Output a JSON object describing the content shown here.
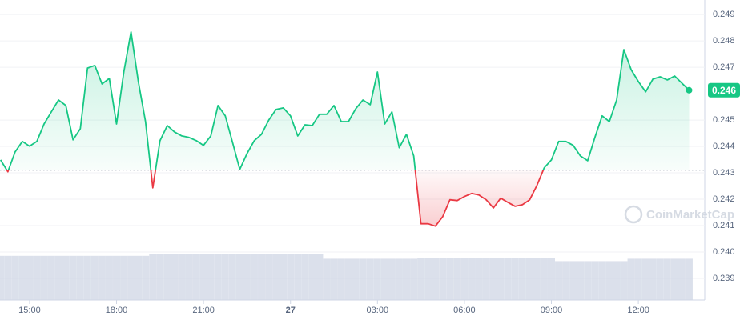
{
  "chart_data": {
    "type": "line",
    "watermark": "CoinMarketCap",
    "current_price_label": "0.246",
    "line_color_up": "#16c784",
    "line_color_down": "#ea3943",
    "volume_color": "#cfd6e4",
    "baseline": 0.2431,
    "x": [
      14,
      14.25,
      14.5,
      14.75,
      15,
      15.25,
      15.5,
      15.75,
      16,
      16.25,
      16.5,
      16.75,
      17,
      17.25,
      17.5,
      17.75,
      18,
      18.25,
      18.5,
      18.75,
      19,
      19.25,
      19.5,
      19.75,
      20,
      20.25,
      20.5,
      20.75,
      21,
      21.25,
      21.5,
      21.75,
      22,
      22.25,
      22.5,
      22.75,
      23,
      23.25,
      23.5,
      23.75,
      24,
      24.25,
      24.5,
      24.75,
      25,
      25.25,
      25.5,
      25.75,
      26,
      26.25,
      26.5,
      26.75,
      27,
      27.25,
      27.5,
      27.75,
      28,
      28.25,
      28.5,
      28.75,
      29,
      29.25,
      29.5,
      29.75,
      30,
      30.25,
      30.5,
      30.75,
      31,
      31.25,
      31.5,
      31.75,
      32,
      32.25,
      32.5,
      32.75,
      33,
      33.25,
      33.5,
      33.75,
      34,
      34.25,
      34.5,
      34.75,
      35,
      35.25,
      35.5,
      35.75,
      36,
      36.25,
      36.5,
      36.75,
      37,
      37.25,
      37.5,
      37.75
    ],
    "values": [
      0.24349,
      0.24304,
      0.24379,
      0.24419,
      0.24401,
      0.24419,
      0.24485,
      0.24531,
      0.24576,
      0.24555,
      0.24425,
      0.24467,
      0.24697,
      0.24707,
      0.24637,
      0.24658,
      0.24485,
      0.24682,
      0.24834,
      0.24646,
      0.24494,
      0.24243,
      0.24422,
      0.24479,
      0.24455,
      0.2444,
      0.24434,
      0.24422,
      0.24404,
      0.2444,
      0.24555,
      0.24516,
      0.24416,
      0.24313,
      0.24373,
      0.24422,
      0.24446,
      0.245,
      0.2454,
      0.24546,
      0.24516,
      0.2444,
      0.24482,
      0.24479,
      0.24522,
      0.24522,
      0.24555,
      0.24494,
      0.24494,
      0.24543,
      0.24576,
      0.24558,
      0.24682,
      0.24485,
      0.24531,
      0.24395,
      0.24446,
      0.24364,
      0.24107,
      0.24107,
      0.24098,
      0.24134,
      0.24198,
      0.24195,
      0.2421,
      0.24222,
      0.24216,
      0.24198,
      0.24167,
      0.24204,
      0.24188,
      0.24173,
      0.24179,
      0.24198,
      0.24252,
      0.24319,
      0.24349,
      0.24419,
      0.24419,
      0.24404,
      0.24364,
      0.24346,
      0.24434,
      0.24516,
      0.24494,
      0.24576,
      0.24767,
      0.24691,
      0.24646,
      0.24607,
      0.24655,
      0.24664,
      0.24652,
      0.24667,
      0.2464,
      0.24613
    ],
    "volume": [
      92,
      92,
      92,
      92,
      92,
      92,
      92,
      92,
      92,
      92,
      92,
      92,
      92,
      92,
      92,
      92,
      92,
      92,
      92,
      92,
      92,
      96,
      96,
      96,
      96,
      96,
      96,
      96,
      96,
      96,
      96,
      96,
      96,
      96,
      96,
      96,
      96,
      96,
      96,
      96,
      96,
      96,
      96,
      96,
      96,
      86,
      86,
      86,
      86,
      86,
      86,
      86,
      86,
      86,
      86,
      86,
      86,
      86,
      88,
      88,
      88,
      88,
      88,
      88,
      88,
      88,
      88,
      88,
      88,
      88,
      88,
      88,
      88,
      88,
      88,
      88,
      88,
      81,
      81,
      81,
      81,
      81,
      81,
      81,
      81,
      81,
      81,
      86,
      86,
      86,
      86,
      86,
      86,
      86,
      86,
      86
    ],
    "volume_ylim": [
      0,
      100
    ],
    "xlim": [
      13.98,
      38.29
    ],
    "xticks": [
      {
        "value": 15,
        "label": "15:00"
      },
      {
        "value": 18,
        "label": "18:00"
      },
      {
        "value": 21,
        "label": "21:00"
      },
      {
        "value": 24,
        "label": "27"
      },
      {
        "value": 27,
        "label": "03:00"
      },
      {
        "value": 30,
        "label": "06:00"
      },
      {
        "value": 33,
        "label": "09:00"
      },
      {
        "value": 36,
        "label": "12:00"
      }
    ],
    "ylim": [
      0.23818,
      0.24955
    ],
    "yticks": [
      0.249,
      0.248,
      0.247,
      0.245,
      0.244,
      0.243,
      0.242,
      0.241,
      {
        "value": 0.24,
        "label": "0.240"
      },
      0.239
    ],
    "grid": true
  }
}
